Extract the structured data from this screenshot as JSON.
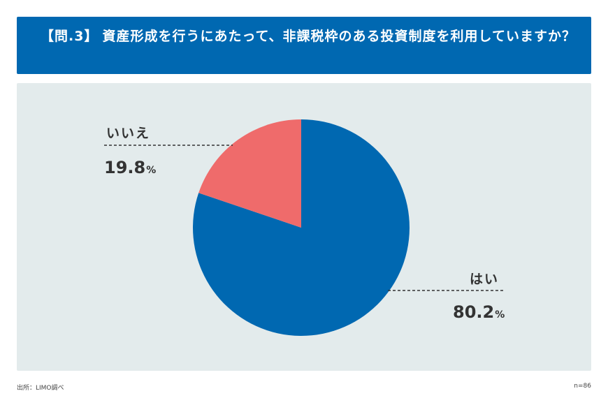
{
  "header": {
    "question_number": "【問.3】",
    "question_text": "資産形成を行うにあたって、非課税枠のある投資制度を利用していますか？"
  },
  "chart_data": {
    "type": "pie",
    "title": "【問.3】資産形成を行うにあたって、非課税枠のある投資制度を利用していますか？",
    "slices": [
      {
        "label": "はい",
        "value": 80.2,
        "color": "#0068b1"
      },
      {
        "label": "いいえ",
        "value": 19.8,
        "color": "#ef6b6b"
      }
    ],
    "unit": "%",
    "start": "12 o'clock, clockwise"
  },
  "footer": {
    "source": "出所：LIMO調べ",
    "sample": "n=86"
  }
}
